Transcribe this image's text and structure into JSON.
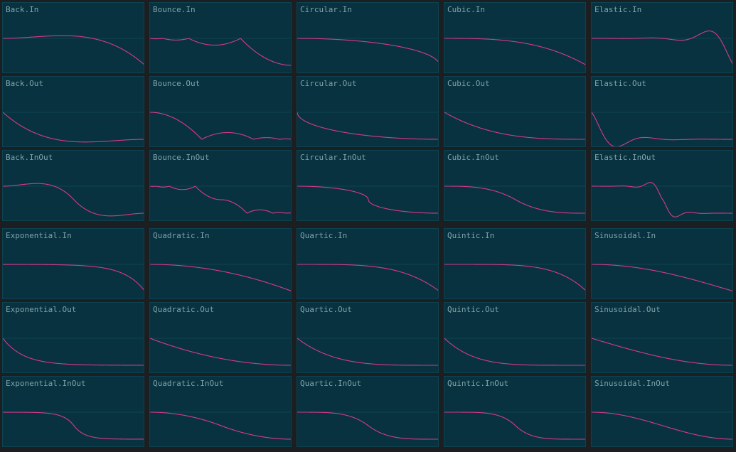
{
  "colors": {
    "background": "#1b1f21",
    "panel": "#08323f",
    "curve": "#d63b8a",
    "midline": "#0e4453",
    "label": "#7fa3ab"
  },
  "chart_data": {
    "type": "line",
    "panels": [
      {
        "label": "Back.In",
        "easing": "Back.In"
      },
      {
        "label": "Bounce.In",
        "easing": "Bounce.In"
      },
      {
        "label": "Circular.In",
        "easing": "Circular.In"
      },
      {
        "label": "Cubic.In",
        "easing": "Cubic.In"
      },
      {
        "label": "Elastic.In",
        "easing": "Elastic.In"
      },
      {
        "label": "Back.Out",
        "easing": "Back.Out"
      },
      {
        "label": "Bounce.Out",
        "easing": "Bounce.Out"
      },
      {
        "label": "Circular.Out",
        "easing": "Circular.Out"
      },
      {
        "label": "Cubic.Out",
        "easing": "Cubic.Out"
      },
      {
        "label": "Elastic.Out",
        "easing": "Elastic.Out"
      },
      {
        "label": "Back.InOut",
        "easing": "Back.InOut"
      },
      {
        "label": "Bounce.InOut",
        "easing": "Bounce.InOut"
      },
      {
        "label": "Circular.InOut",
        "easing": "Circular.InOut"
      },
      {
        "label": "Cubic.InOut",
        "easing": "Cubic.InOut"
      },
      {
        "label": "Elastic.InOut",
        "easing": "Elastic.InOut"
      },
      {
        "label": "Exponential.In",
        "easing": "Exponential.In"
      },
      {
        "label": "Quadratic.In",
        "easing": "Quadratic.In"
      },
      {
        "label": "Quartic.In",
        "easing": "Quartic.In"
      },
      {
        "label": "Quintic.In",
        "easing": "Quintic.In"
      },
      {
        "label": "Sinusoidal.In",
        "easing": "Sinusoidal.In"
      },
      {
        "label": "Exponential.Out",
        "easing": "Exponential.Out"
      },
      {
        "label": "Quadratic.Out",
        "easing": "Quadratic.Out"
      },
      {
        "label": "Quartic.Out",
        "easing": "Quartic.Out"
      },
      {
        "label": "Quintic.Out",
        "easing": "Quintic.Out"
      },
      {
        "label": "Sinusoidal.Out",
        "easing": "Sinusoidal.Out"
      },
      {
        "label": "Exponential.InOut",
        "easing": "Exponential.InOut"
      },
      {
        "label": "Quadratic.InOut",
        "easing": "Quadratic.InOut"
      },
      {
        "label": "Quartic.InOut",
        "easing": "Quartic.InOut"
      },
      {
        "label": "Quintic.InOut",
        "easing": "Quintic.InOut"
      },
      {
        "label": "Sinusoidal.InOut",
        "easing": "Sinusoidal.InOut"
      }
    ]
  }
}
